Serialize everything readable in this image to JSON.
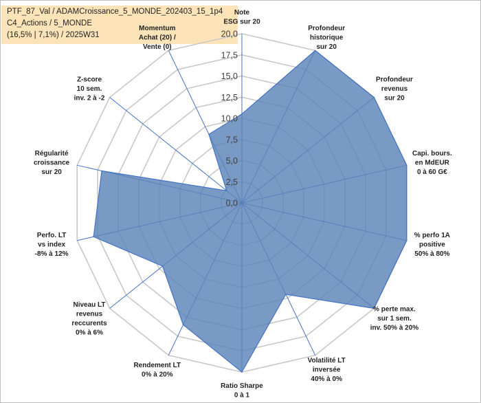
{
  "header": {
    "line1": "PTF_87_Val / ADAMCroissance_5_MONDE_202403_15_1p4",
    "line2": "C4_Actions / 5_MONDE",
    "line3": "(16,5% | 7,1%) / 2025W31"
  },
  "chart_data": {
    "type": "radar",
    "rlim": [
      0,
      20
    ],
    "ticks": [
      "0,0",
      "2,5",
      "5,0",
      "7,5",
      "10,0",
      "12,5",
      "15,0",
      "17,5",
      "20,0"
    ],
    "grid": true,
    "fill_color": "#5b84b8",
    "line_color": "#4472c4",
    "axes": [
      {
        "label": [
          "Note",
          "ESG sur 20"
        ],
        "value": 10.5
      },
      {
        "label": [
          "Profondeur",
          "historique",
          "sur 20"
        ],
        "value": 20
      },
      {
        "label": [
          "Profondeur",
          "revenus",
          "sur 20"
        ],
        "value": 20
      },
      {
        "label": [
          "Capi. bours.",
          "en MdEUR",
          "0 à 60 G€"
        ],
        "value": 20
      },
      {
        "label": [
          "% perfo 1A",
          "positive",
          "50% à 80%"
        ],
        "value": 20
      },
      {
        "label": [
          "% perte max.",
          "sur 1 sem.",
          "inv. 50% à 20%"
        ],
        "value": 20
      },
      {
        "label": [
          "Volatilité LT",
          "inversée",
          "40% à 0%"
        ],
        "value": 12
      },
      {
        "label": [
          "Ratio Sharpe",
          "0 à 1"
        ],
        "value": 20
      },
      {
        "label": [
          "Rendement LT",
          "0% à 20%"
        ],
        "value": 16
      },
      {
        "label": [
          "Niveau LT",
          "revenus",
          "reccurents",
          "0% à 6%"
        ],
        "value": 12
      },
      {
        "label": [
          "Perfo. LT",
          "vs index",
          "-8% à 12%"
        ],
        "value": 18
      },
      {
        "label": [
          "Régularité",
          "croissance",
          "sur 20"
        ],
        "value": 17
      },
      {
        "label": [
          "Z-score",
          "10 sem.",
          "inv. 2 à -2"
        ],
        "value": 2.3
      },
      {
        "label": [
          "Momentum",
          "Achat (20) /",
          "Vente (0)"
        ],
        "value": 9
      }
    ]
  }
}
